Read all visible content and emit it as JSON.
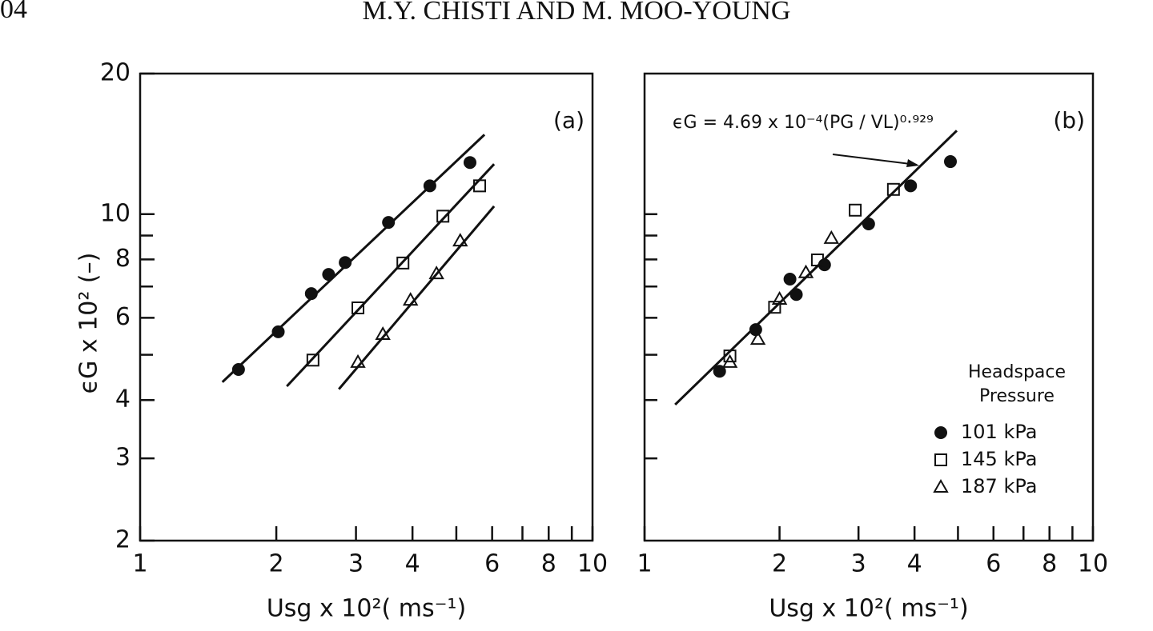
{
  "header": {
    "page_number": "04",
    "running_title": "M.Y. CHISTI AND M. MOO-YOUNG"
  },
  "chart_data": [
    {
      "type": "scatter",
      "panel_label": "(a)",
      "xlabel": "Usg x 10²( ms⁻¹)",
      "ylabel": "ϵG x 10² (–)",
      "xscale": "log",
      "yscale": "log",
      "xlim": [
        1,
        10
      ],
      "ylim": [
        2,
        20
      ],
      "xticks": [
        1,
        2,
        3,
        4,
        6,
        8,
        10
      ],
      "xminorticks": [
        5,
        7,
        9
      ],
      "yticks": [
        2,
        3,
        4,
        6,
        8,
        10,
        20
      ],
      "yminorticks": [
        5,
        7,
        9
      ],
      "series": [
        {
          "marker": "circle-filled",
          "color": "#111111",
          "x": [
            1.65,
            2.02,
            2.39,
            2.61,
            2.84,
            3.54,
            4.37,
            5.36
          ],
          "values": [
            4.65,
            5.6,
            6.76,
            7.43,
            7.88,
            9.6,
            11.5,
            12.9
          ]
        },
        {
          "marker": "square-open",
          "color": "#111111",
          "x": [
            2.41,
            3.03,
            3.81,
            4.67,
            5.63
          ],
          "values": [
            4.87,
            6.3,
            7.86,
            9.9,
            11.5
          ]
        },
        {
          "marker": "triangle-open",
          "color": "#111111",
          "x": [
            3.03,
            3.44,
            3.96,
            4.52,
            5.1
          ],
          "values": [
            4.82,
            5.53,
            6.55,
            7.46,
            8.77
          ]
        }
      ],
      "fit_lines": [
        {
          "x": [
            1.52,
            5.77
          ],
          "values": [
            4.37,
            14.8
          ]
        },
        {
          "x": [
            2.11,
            6.06
          ],
          "values": [
            4.28,
            12.8
          ]
        },
        {
          "x": [
            2.75,
            6.06
          ],
          "values": [
            4.22,
            10.4
          ]
        }
      ]
    },
    {
      "type": "scatter",
      "panel_label": "(b)",
      "xlabel": "Usg x 10²( ms⁻¹)",
      "annotation": "ϵG = 4.69 x 10⁻⁴(PG / VL)⁰·⁹²⁹",
      "xscale": "log",
      "yscale": "log",
      "xlim": [
        1,
        10
      ],
      "ylim": [
        2,
        20
      ],
      "xticks": [
        1,
        2,
        3,
        4,
        6,
        8,
        10
      ],
      "xminorticks": [
        5,
        7,
        9
      ],
      "ytickmarks": [
        3,
        4,
        5,
        6,
        7,
        8,
        9,
        10
      ],
      "legend": {
        "title": [
          "Headspace",
          "Pressure"
        ],
        "position": "lower right"
      },
      "series": [
        {
          "name": "101 kPa",
          "marker": "circle-filled",
          "color": "#111111",
          "x": [
            1.47,
            1.77,
            2.18,
            2.11,
            2.52,
            3.16,
            3.92,
            4.81
          ],
          "values": [
            4.61,
            5.66,
            6.73,
            7.26,
            7.79,
            9.53,
            11.5,
            12.96
          ]
        },
        {
          "name": "145 kPa",
          "marker": "square-open",
          "color": "#111111",
          "x": [
            1.55,
            1.95,
            2.43,
            2.95,
            3.59
          ],
          "values": [
            4.97,
            6.32,
            7.98,
            10.2,
            11.3
          ]
        },
        {
          "name": "187 kPa",
          "marker": "triangle-open",
          "color": "#111111",
          "x": [
            1.55,
            1.79,
            2.0,
            2.29,
            2.61
          ],
          "values": [
            4.82,
            5.4,
            6.58,
            7.5,
            8.88
          ]
        }
      ],
      "fit_lines": [
        {
          "x": [
            1.17,
            4.97
          ],
          "values": [
            3.91,
            15.1
          ]
        }
      ]
    }
  ]
}
